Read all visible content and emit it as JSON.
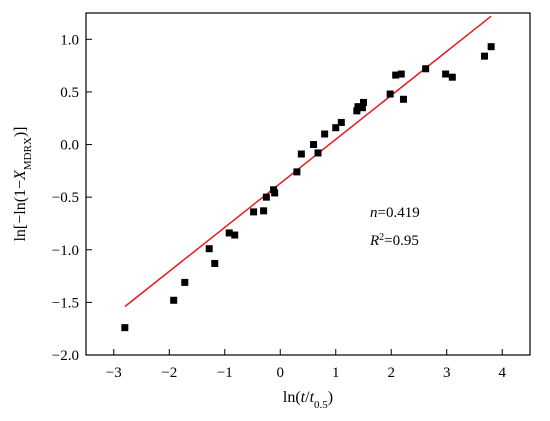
{
  "chart_data": {
    "type": "scatter",
    "title": "",
    "xlabel": {
      "prefix": "ln(",
      "t_num": "t",
      "slash": "/",
      "t_den": "t",
      "sub": "0.5",
      "suffix": ")"
    },
    "ylabel": {
      "prefix": "ln[−ln(1−",
      "var": "X",
      "sub": "MDRX",
      "suffix": ")]"
    },
    "xlim": [
      -3.5,
      4.5
    ],
    "ylim": [
      -2.0,
      1.25
    ],
    "xticks": [
      -3,
      -2,
      -1,
      0,
      1,
      2,
      3,
      4
    ],
    "yticks": [
      -2.0,
      -1.5,
      -1.0,
      -0.5,
      0.0,
      0.5,
      1.0
    ],
    "xtick_labels": [
      "−3",
      "−2",
      "−1",
      "0",
      "1",
      "2",
      "3",
      "4"
    ],
    "ytick_labels": [
      "−2.0",
      "−1.5",
      "−1.0",
      "−0.5",
      "0.0",
      "0.5",
      "1.0"
    ],
    "grid": false,
    "colors": {
      "points": "#000000",
      "fit_line": "#e8191e",
      "axes": "#000000"
    },
    "points": [
      {
        "x": -2.8,
        "y": -1.74
      },
      {
        "x": -1.92,
        "y": -1.48
      },
      {
        "x": -1.72,
        "y": -1.31
      },
      {
        "x": -1.28,
        "y": -0.99
      },
      {
        "x": -1.18,
        "y": -1.13
      },
      {
        "x": -0.92,
        "y": -0.84
      },
      {
        "x": -0.82,
        "y": -0.86
      },
      {
        "x": -0.48,
        "y": -0.64
      },
      {
        "x": -0.3,
        "y": -0.63
      },
      {
        "x": -0.25,
        "y": -0.5
      },
      {
        "x": -0.12,
        "y": -0.43
      },
      {
        "x": -0.1,
        "y": -0.46
      },
      {
        "x": 0.3,
        "y": -0.26
      },
      {
        "x": 0.38,
        "y": -0.09
      },
      {
        "x": 0.6,
        "y": 0.0
      },
      {
        "x": 0.68,
        "y": -0.08
      },
      {
        "x": 0.8,
        "y": 0.1
      },
      {
        "x": 1.0,
        "y": 0.16
      },
      {
        "x": 1.1,
        "y": 0.21
      },
      {
        "x": 1.38,
        "y": 0.32
      },
      {
        "x": 1.4,
        "y": 0.36
      },
      {
        "x": 1.48,
        "y": 0.35
      },
      {
        "x": 1.5,
        "y": 0.4
      },
      {
        "x": 1.98,
        "y": 0.48
      },
      {
        "x": 2.08,
        "y": 0.66
      },
      {
        "x": 2.18,
        "y": 0.67
      },
      {
        "x": 2.22,
        "y": 0.43
      },
      {
        "x": 2.62,
        "y": 0.72
      },
      {
        "x": 2.98,
        "y": 0.67
      },
      {
        "x": 3.1,
        "y": 0.64
      },
      {
        "x": 3.68,
        "y": 0.84
      },
      {
        "x": 3.8,
        "y": 0.93
      }
    ],
    "fit_line": {
      "x1": -2.8,
      "y1": -1.54,
      "x2": 3.8,
      "y2": 1.22
    },
    "annotations": {
      "n_var": "n",
      "n_value": "=0.419",
      "r2_var": "R",
      "r2_sup": "2",
      "r2_value": "=0.95"
    }
  }
}
